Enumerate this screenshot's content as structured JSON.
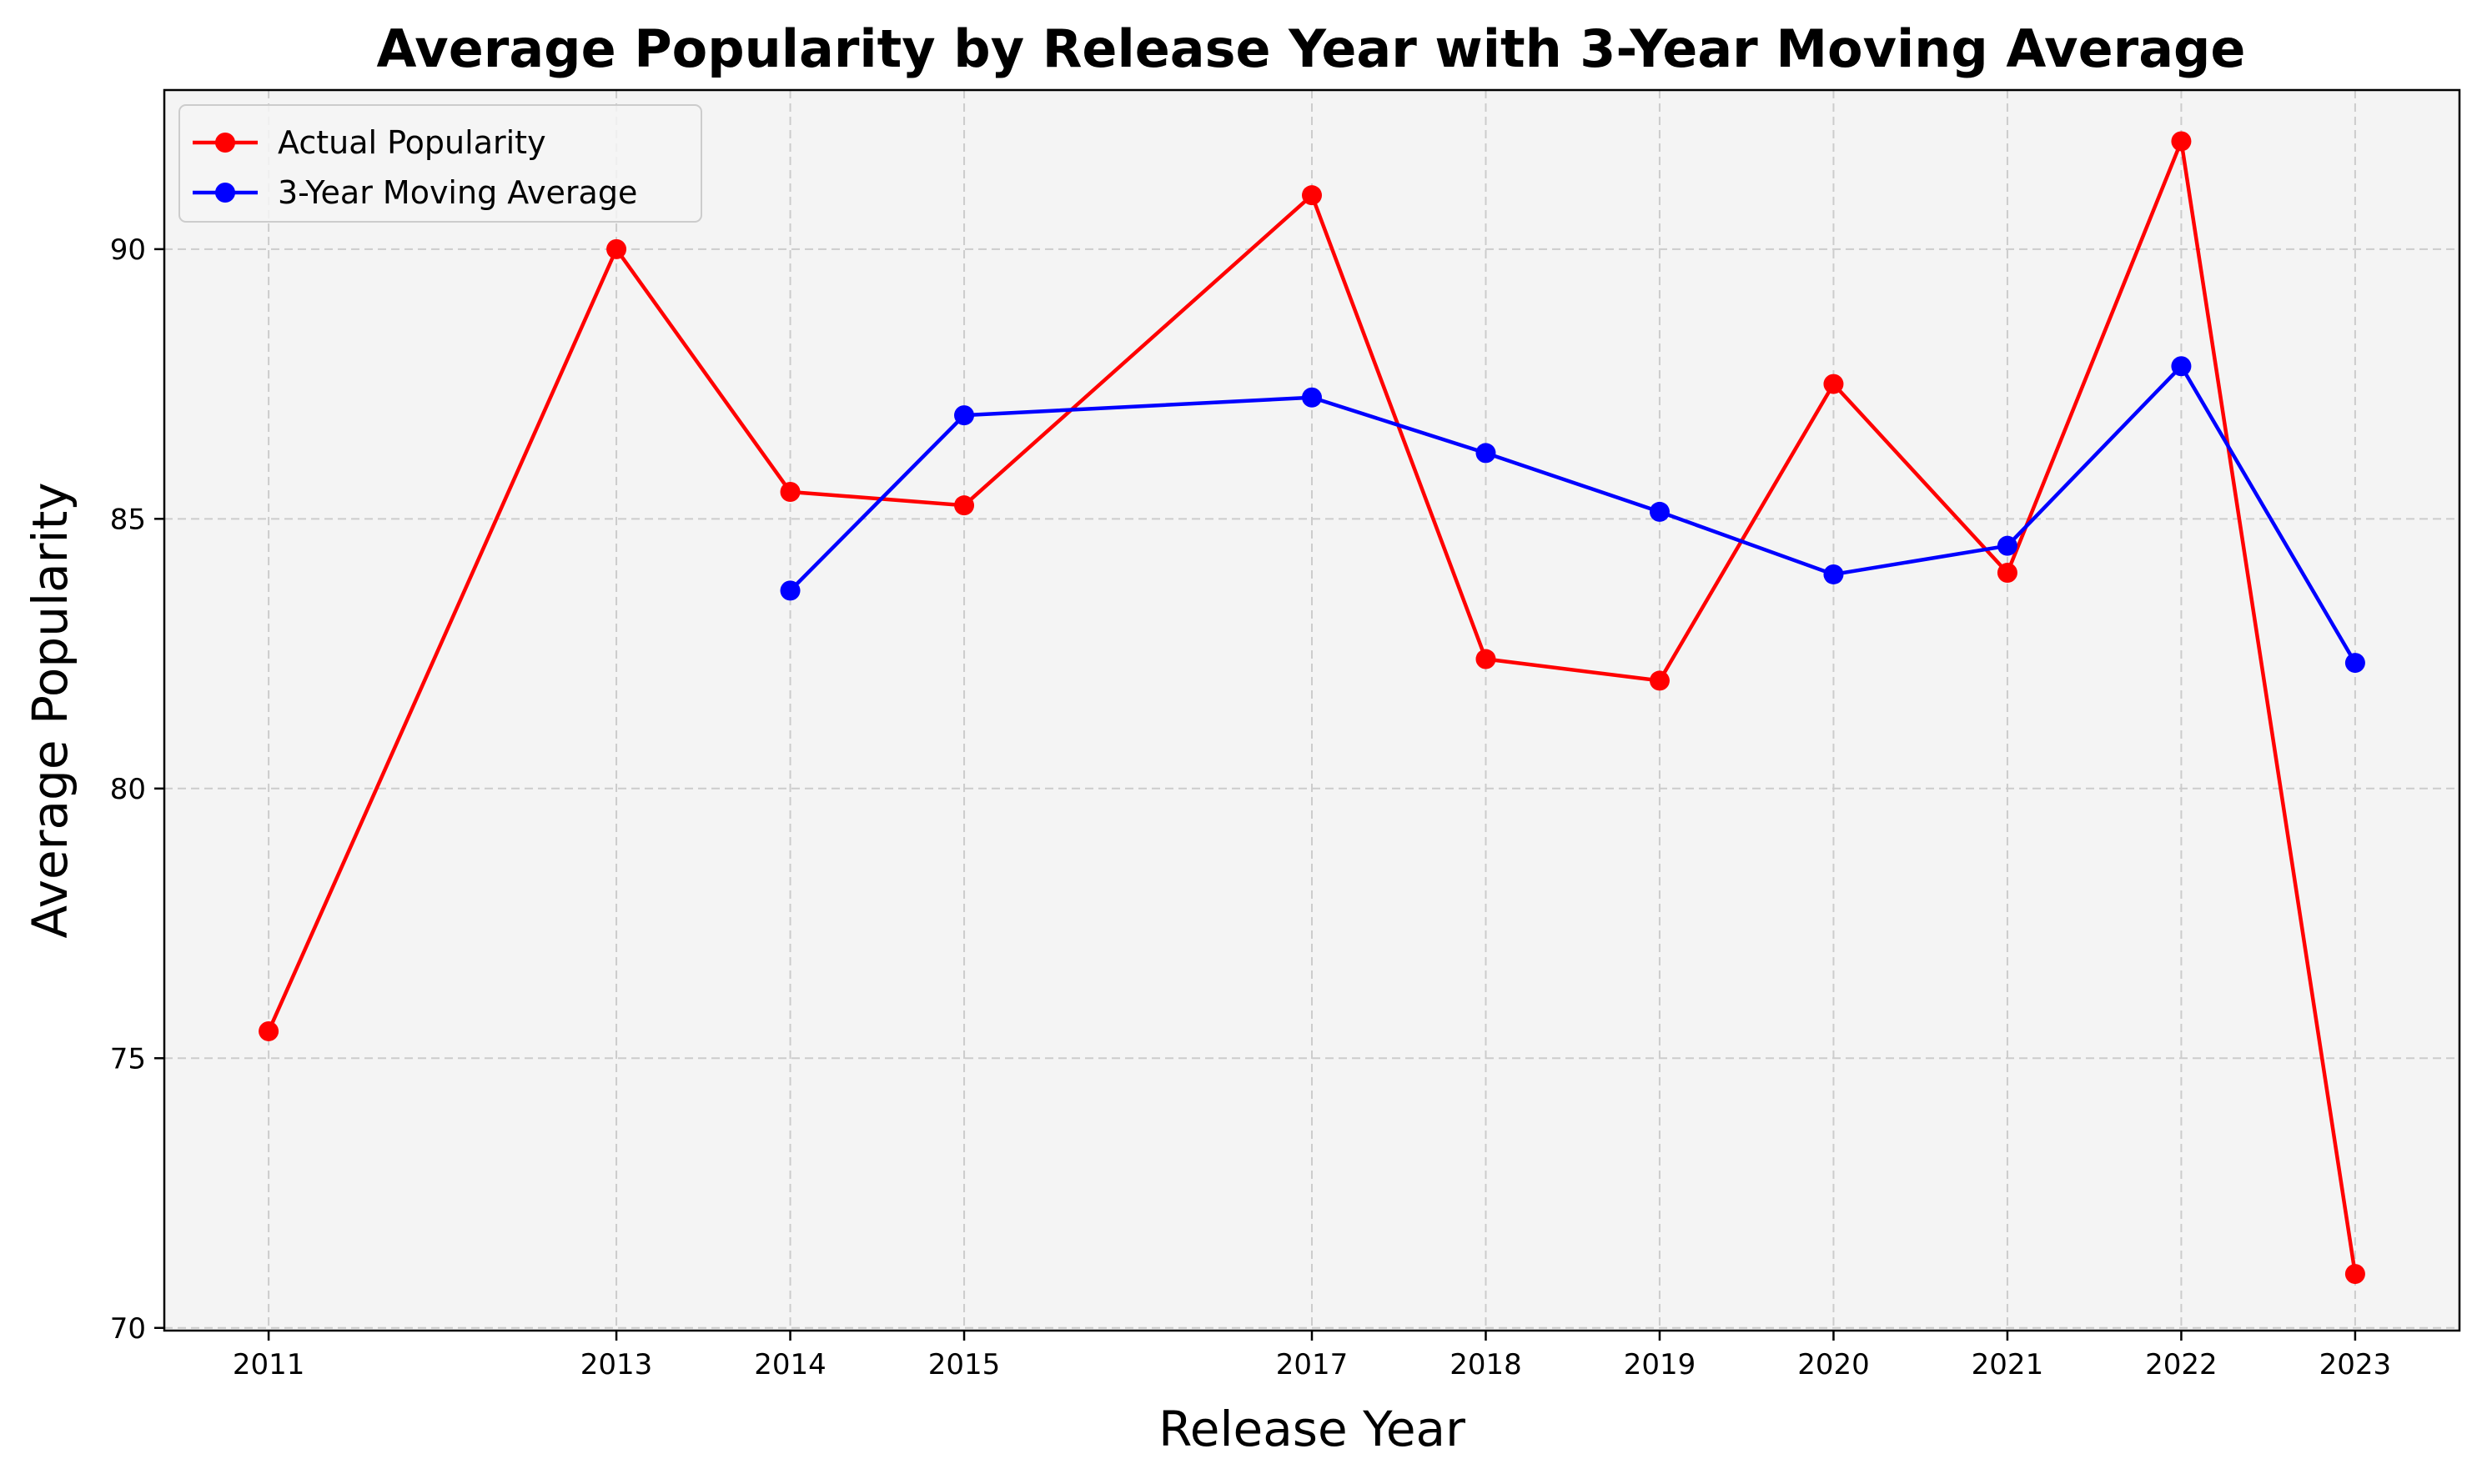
{
  "chart_data": {
    "type": "line",
    "title": "Average Popularity by Release Year with 3-Year Moving Average",
    "xlabel": "Release Year",
    "ylabel": "Average Popularity",
    "x_ticks": [
      2011,
      2013,
      2014,
      2015,
      2017,
      2018,
      2019,
      2020,
      2021,
      2022,
      2023
    ],
    "y_ticks": [
      70,
      75,
      80,
      85,
      90
    ],
    "xlim": [
      2010.4,
      2023.6
    ],
    "ylim": [
      69.95,
      92.95
    ],
    "grid": true,
    "legend_position": "top-left",
    "series": [
      {
        "name": "Actual Popularity",
        "color": "#ff0000",
        "x": [
          2011,
          2013,
          2014,
          2015,
          2017,
          2018,
          2019,
          2020,
          2021,
          2022,
          2023
        ],
        "values": [
          75.5,
          90.0,
          85.5,
          85.25,
          91.0,
          82.4,
          82.0,
          87.5,
          84.0,
          92.0,
          71.0
        ]
      },
      {
        "name": "3-Year Moving Average",
        "color": "#0000ff",
        "x": [
          2014,
          2015,
          2017,
          2018,
          2019,
          2020,
          2021,
          2022,
          2023
        ],
        "values": [
          83.67,
          86.92,
          87.25,
          86.22,
          85.13,
          83.97,
          84.5,
          87.83,
          82.33
        ]
      }
    ]
  }
}
